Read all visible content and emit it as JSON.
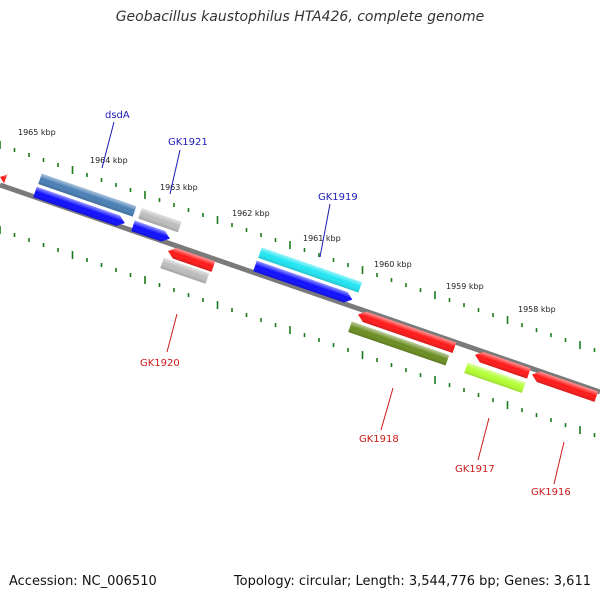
{
  "title": "Geobacillus kaustophilus HTA426, complete genome",
  "footer": {
    "accession": "Accession: NC_006510",
    "summary": "Topology: circular; Length: 3,544,776 bp; Genes: 3,611"
  },
  "ruler_labels": [
    "1965 kbp",
    "1964 kbp",
    "1963 kbp",
    "1962 kbp",
    "1961 kbp",
    "1960 kbp",
    "1959 kbp",
    "1958 kbp"
  ],
  "genes_plus": [
    {
      "label": "dsdA",
      "color": "#4a7fb5",
      "lane": 2
    },
    {
      "label": "",
      "color": "#1010ff",
      "lane": 1
    },
    {
      "label": "GK1921",
      "color": "#bdbdbd",
      "lane": 2
    },
    {
      "label": "",
      "color": "#1010ff",
      "lane": 1
    },
    {
      "label": "GK1919",
      "color": "#22e5f2",
      "lane": 2
    },
    {
      "label": "",
      "color": "#1010ff",
      "lane": 1
    }
  ],
  "genes_minus": [
    {
      "label": "",
      "color": "#ff1a1a",
      "lane": 1
    },
    {
      "label": "GK1920",
      "color": "#bdbdbd",
      "lane": 2
    },
    {
      "label": "",
      "color": "#ff1a1a",
      "lane": 1
    },
    {
      "label": "GK1918",
      "color": "#6b8e23",
      "lane": 2
    },
    {
      "label": "",
      "color": "#ff1a1a",
      "lane": 1
    },
    {
      "label": "GK1917",
      "color": "#b3ff33",
      "lane": 2
    },
    {
      "label": "GK1916",
      "color": "#ff1a1a",
      "lane": 1
    }
  ],
  "colors": {
    "backbone": "#7a7a7a",
    "ticks": "#1a7a1a",
    "plus_label": "#1a1ab5",
    "minus_label": "#cc1a1a"
  }
}
